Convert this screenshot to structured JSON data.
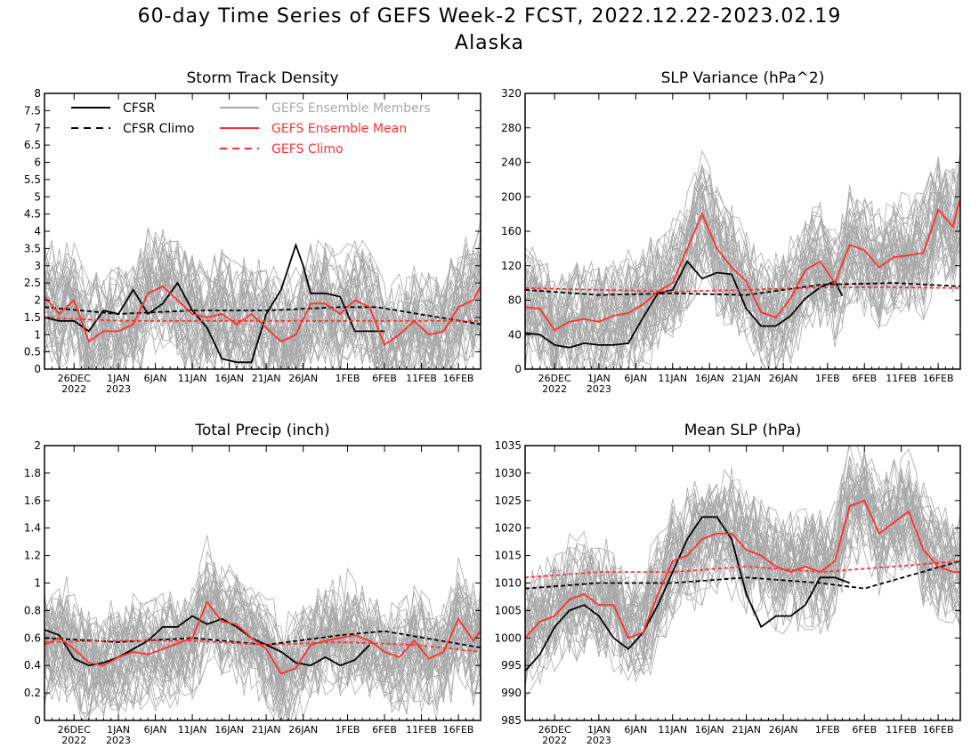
{
  "figure": {
    "title": "60-day Time Series of GEFS Week-2 FCST, 2022.12.22-2023.02.19",
    "subtitle": "Alaska"
  },
  "legend": {
    "cfsr": "CFSR",
    "cfsr_climo": "CFSR Climo",
    "gefs_members": "GEFS Ensemble Members",
    "gefs_mean": "GEFS Ensemble Mean",
    "gefs_climo": "GEFS Climo"
  },
  "colors": {
    "cfsr": "#000000",
    "members": "#a9a9a9",
    "gefs_mean": "#ff3030",
    "gefs_climo": "#ff3030"
  },
  "x_ticks": [
    {
      "day": 4,
      "label": "26DEC",
      "sub": "2022"
    },
    {
      "day": 10,
      "label": "1JAN",
      "sub": "2023"
    },
    {
      "day": 15,
      "label": "6JAN",
      "sub": ""
    },
    {
      "day": 20,
      "label": "11JAN",
      "sub": ""
    },
    {
      "day": 25,
      "label": "16JAN",
      "sub": ""
    },
    {
      "day": 30,
      "label": "21JAN",
      "sub": ""
    },
    {
      "day": 35,
      "label": "26JAN",
      "sub": ""
    },
    {
      "day": 41,
      "label": "1FEB",
      "sub": ""
    },
    {
      "day": 46,
      "label": "6FEB",
      "sub": ""
    },
    {
      "day": 51,
      "label": "11FEB",
      "sub": ""
    },
    {
      "day": 56,
      "label": "16FEB",
      "sub": ""
    }
  ],
  "chart_data": [
    {
      "type": "line",
      "title": "Storm Track Density",
      "ylim": [
        0,
        8
      ],
      "yticks": [
        "0",
        "0.5",
        "1",
        "1.5",
        "2",
        "2.5",
        "3",
        "3.5",
        "4",
        "4.5",
        "5",
        "5.5",
        "6",
        "6.5",
        "7",
        "7.5",
        "8"
      ],
      "member_spread_approx": [
        0.3,
        5.5
      ],
      "series": [
        {
          "name": "CFSR",
          "x": [
            0,
            2,
            4,
            6,
            8,
            10,
            12,
            14,
            16,
            18,
            20,
            22,
            24,
            26,
            28,
            30,
            32,
            34,
            35,
            36,
            38,
            40,
            42,
            44,
            46
          ],
          "values": [
            1.5,
            1.4,
            1.4,
            1.1,
            1.7,
            1.6,
            2.3,
            1.6,
            1.9,
            2.5,
            1.7,
            1.2,
            0.3,
            0.2,
            0.2,
            1.6,
            2.3,
            3.6,
            3.0,
            2.2,
            2.2,
            2.1,
            1.1,
            1.1,
            1.1
          ]
        },
        {
          "name": "CFSR Climo",
          "x": [
            0,
            10,
            20,
            30,
            40,
            45,
            59
          ],
          "values": [
            1.8,
            1.6,
            1.7,
            1.7,
            1.8,
            1.8,
            1.3
          ]
        },
        {
          "name": "GEFS Ensemble Mean",
          "x": [
            0,
            2,
            4,
            6,
            8,
            10,
            12,
            14,
            16,
            18,
            20,
            22,
            24,
            26,
            28,
            30,
            32,
            34,
            36,
            38,
            40,
            42,
            44,
            46,
            48,
            50,
            52,
            54,
            56,
            58,
            59
          ],
          "values": [
            2.1,
            1.6,
            2.0,
            0.8,
            1.1,
            1.1,
            1.3,
            2.2,
            2.4,
            2.0,
            1.6,
            1.5,
            1.6,
            1.3,
            1.6,
            1.2,
            0.8,
            1.0,
            1.9,
            1.9,
            1.6,
            2.0,
            1.8,
            0.7,
            1.0,
            1.4,
            1.0,
            1.1,
            1.8,
            2.0,
            2.4
          ]
        },
        {
          "name": "GEFS Climo",
          "x": [
            0,
            10,
            20,
            30,
            40,
            50,
            59
          ],
          "values": [
            1.5,
            1.4,
            1.4,
            1.4,
            1.4,
            1.4,
            1.4
          ]
        }
      ]
    },
    {
      "type": "line",
      "title": "SLP Variance (hPa^2)",
      "ylim": [
        0,
        320
      ],
      "yticks": [
        "0",
        "40",
        "80",
        "120",
        "160",
        "200",
        "240",
        "280",
        "320"
      ],
      "member_spread_approx": [
        20,
        320
      ],
      "series": [
        {
          "name": "CFSR",
          "x": [
            0,
            2,
            4,
            6,
            8,
            10,
            12,
            14,
            16,
            18,
            20,
            22,
            24,
            26,
            28,
            30,
            32,
            34,
            36,
            38,
            40,
            42,
            43
          ],
          "values": [
            42,
            40,
            28,
            25,
            30,
            28,
            28,
            30,
            60,
            88,
            92,
            125,
            105,
            112,
            110,
            70,
            50,
            50,
            62,
            82,
            95,
            102,
            85
          ]
        },
        {
          "name": "CFSR Climo",
          "x": [
            0,
            10,
            20,
            30,
            40,
            50,
            59
          ],
          "values": [
            92,
            86,
            88,
            86,
            98,
            100,
            96
          ]
        },
        {
          "name": "GEFS Ensemble Mean",
          "x": [
            0,
            2,
            4,
            6,
            8,
            10,
            12,
            14,
            16,
            18,
            20,
            22,
            24,
            26,
            28,
            30,
            32,
            34,
            36,
            38,
            40,
            42,
            44,
            46,
            48,
            50,
            52,
            54,
            56,
            58,
            59
          ],
          "values": [
            72,
            70,
            45,
            55,
            58,
            55,
            62,
            65,
            75,
            90,
            100,
            140,
            180,
            140,
            118,
            102,
            66,
            60,
            82,
            115,
            125,
            100,
            144,
            138,
            118,
            130,
            132,
            135,
            185,
            165,
            198
          ]
        },
        {
          "name": "GEFS Climo",
          "x": [
            0,
            10,
            20,
            30,
            40,
            50,
            59
          ],
          "values": [
            94,
            92,
            90,
            92,
            95,
            95,
            94
          ]
        }
      ]
    },
    {
      "type": "line",
      "title": "Total Precip (inch)",
      "ylim": [
        0,
        2
      ],
      "yticks": [
        "0",
        "0.2",
        "0.4",
        "0.6",
        "0.8",
        "1",
        "1.2",
        "1.4",
        "1.6",
        "1.8",
        "2"
      ],
      "member_spread_approx": [
        0.05,
        1.55
      ],
      "series": [
        {
          "name": "CFSR",
          "x": [
            0,
            2,
            4,
            6,
            8,
            10,
            12,
            14,
            16,
            18,
            20,
            22,
            24,
            26,
            28,
            30,
            32,
            34,
            36,
            38,
            40,
            42,
            44
          ],
          "values": [
            0.66,
            0.62,
            0.45,
            0.4,
            0.42,
            0.46,
            0.52,
            0.58,
            0.68,
            0.68,
            0.76,
            0.7,
            0.74,
            0.68,
            0.6,
            0.55,
            0.5,
            0.42,
            0.4,
            0.46,
            0.4,
            0.44,
            0.55
          ]
        },
        {
          "name": "CFSR Climo",
          "x": [
            0,
            10,
            20,
            30,
            40,
            46,
            59
          ],
          "values": [
            0.6,
            0.57,
            0.6,
            0.55,
            0.62,
            0.65,
            0.53
          ]
        },
        {
          "name": "GEFS Ensemble Mean",
          "x": [
            0,
            2,
            4,
            6,
            8,
            10,
            12,
            14,
            16,
            18,
            20,
            22,
            24,
            26,
            28,
            30,
            32,
            34,
            36,
            38,
            40,
            42,
            44,
            46,
            48,
            50,
            52,
            54,
            56,
            58,
            59
          ],
          "values": [
            0.55,
            0.6,
            0.52,
            0.42,
            0.4,
            0.46,
            0.5,
            0.48,
            0.52,
            0.56,
            0.6,
            0.86,
            0.72,
            0.7,
            0.6,
            0.52,
            0.34,
            0.38,
            0.55,
            0.58,
            0.6,
            0.62,
            0.58,
            0.5,
            0.46,
            0.58,
            0.45,
            0.5,
            0.74,
            0.58,
            0.65
          ]
        },
        {
          "name": "GEFS Climo",
          "x": [
            0,
            10,
            20,
            30,
            40,
            50,
            59
          ],
          "values": [
            0.57,
            0.58,
            0.58,
            0.55,
            0.57,
            0.55,
            0.5
          ]
        }
      ]
    },
    {
      "type": "line",
      "title": "Mean SLP (hPa)",
      "ylim": [
        985,
        1035
      ],
      "yticks": [
        "985",
        "990",
        "995",
        "1000",
        "1005",
        "1010",
        "1015",
        "1020",
        "1025",
        "1030",
        "1035"
      ],
      "member_spread_approx": [
        987,
        1035
      ],
      "series": [
        {
          "name": "CFSR",
          "x": [
            0,
            2,
            4,
            6,
            8,
            10,
            12,
            14,
            16,
            18,
            20,
            22,
            24,
            26,
            28,
            30,
            32,
            34,
            36,
            38,
            40,
            42,
            44
          ],
          "values": [
            994,
            997,
            1002,
            1005,
            1006,
            1004,
            1000,
            998,
            1001,
            1006,
            1012,
            1018,
            1022,
            1022,
            1018,
            1008,
            1002,
            1004,
            1004,
            1006,
            1011,
            1011,
            1010
          ]
        },
        {
          "name": "CFSR Climo",
          "x": [
            0,
            10,
            20,
            30,
            40,
            46,
            59
          ],
          "values": [
            1009,
            1010,
            1010,
            1011,
            1010,
            1009,
            1014
          ]
        },
        {
          "name": "GEFS Ensemble Mean",
          "x": [
            0,
            2,
            4,
            6,
            8,
            10,
            12,
            14,
            16,
            18,
            20,
            22,
            24,
            26,
            28,
            30,
            32,
            34,
            36,
            38,
            40,
            42,
            44,
            46,
            48,
            50,
            52,
            54,
            56,
            58,
            59
          ],
          "values": [
            1000,
            1003,
            1004,
            1007,
            1008,
            1006,
            1006,
            1000,
            1001,
            1008,
            1014,
            1015,
            1018,
            1019,
            1019,
            1016,
            1015,
            1013,
            1012,
            1013,
            1012,
            1014,
            1024,
            1025,
            1019,
            1021,
            1023,
            1016,
            1013,
            1012,
            1012
          ]
        },
        {
          "name": "GEFS Climo",
          "x": [
            0,
            10,
            20,
            30,
            40,
            50,
            59
          ],
          "values": [
            1011,
            1012,
            1012,
            1013,
            1012,
            1013,
            1014
          ]
        }
      ]
    }
  ]
}
